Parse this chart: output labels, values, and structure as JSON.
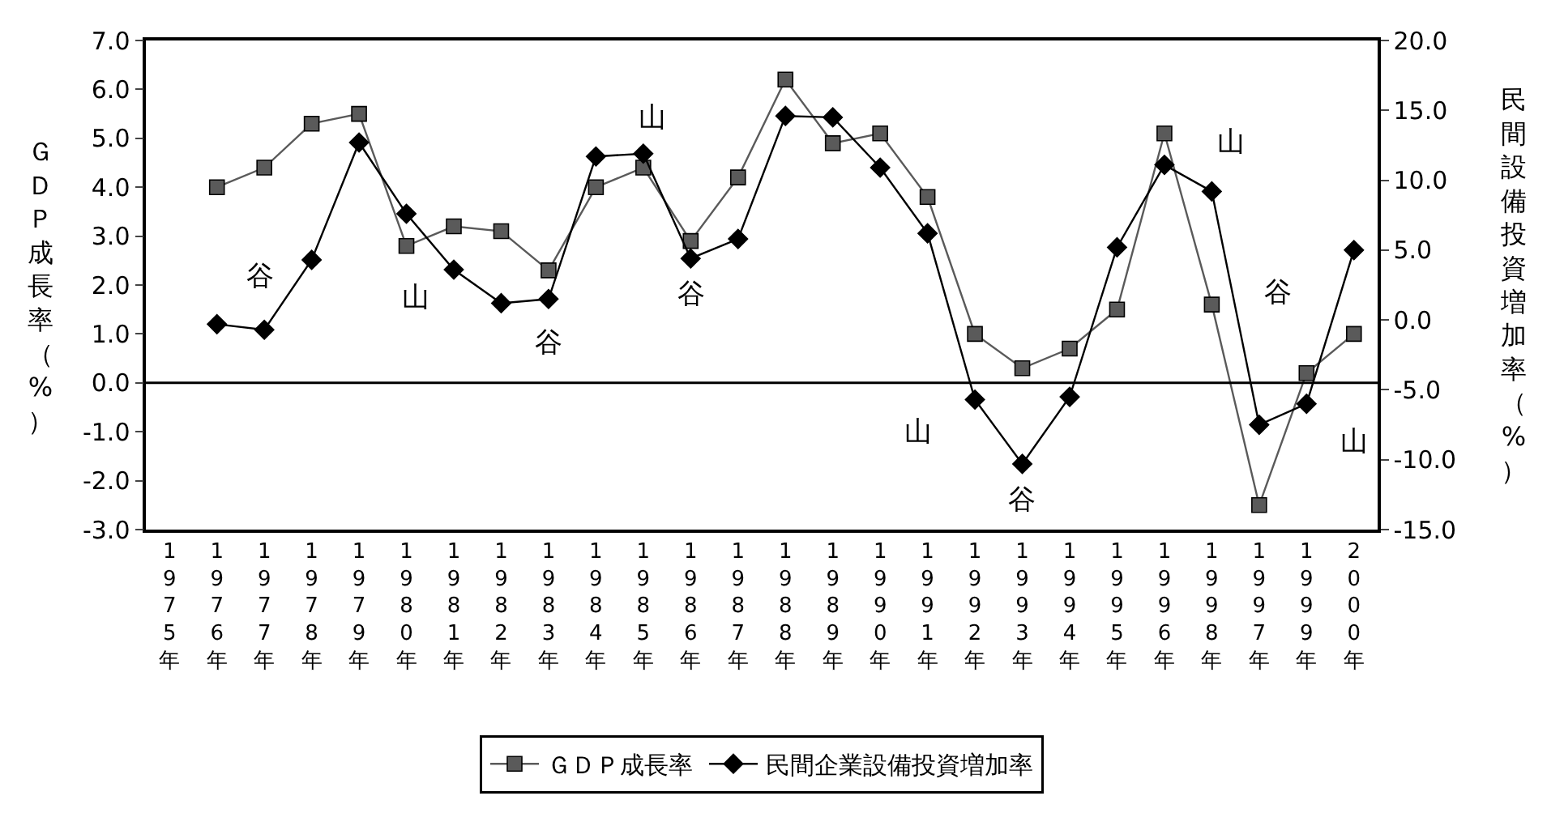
{
  "chart_data": {
    "type": "line",
    "ylabel": "ＧＤＰ成長率（%）",
    "y2label": "民間設備投資増加率（%）",
    "categories": [
      "1975年",
      "1976年",
      "1977年",
      "1978年",
      "1979年",
      "1980年",
      "1981年",
      "1982年",
      "1983年",
      "1984年",
      "1985年",
      "1986年",
      "1987年",
      "1988年",
      "1989年",
      "1990年",
      "1991年",
      "1992年",
      "1993年",
      "1994年",
      "1995年",
      "1996年",
      "1998年",
      "1997年",
      "1999年",
      "2000年"
    ],
    "series": [
      {
        "name": "ＧＤＰ成長率",
        "color": "#5a5a5a",
        "marker": "square",
        "values": [
          null,
          4.0,
          4.4,
          5.3,
          5.5,
          2.8,
          3.2,
          3.1,
          2.3,
          4.0,
          4.4,
          2.9,
          4.2,
          6.2,
          4.9,
          5.1,
          3.8,
          1.0,
          0.3,
          0.7,
          1.5,
          5.1,
          1.6,
          -2.5,
          0.2,
          1.0
        ]
      },
      {
        "name": "民間企業設備投資増加率",
        "color": "#000000",
        "marker": "diamond",
        "axis": "y2",
        "values": [
          null,
          -0.3,
          -0.7,
          4.3,
          12.7,
          7.6,
          3.6,
          1.2,
          1.5,
          11.7,
          11.9,
          4.4,
          5.8,
          14.6,
          14.5,
          10.9,
          6.2,
          -5.7,
          -10.3,
          -5.5,
          5.2,
          11.1,
          9.2,
          -7.5,
          -6.0,
          5.0
        ]
      }
    ],
    "ylim": [
      -3,
      7
    ],
    "yticks": [
      {
        "value": -3,
        "label": "-3.0"
      },
      {
        "value": -2,
        "label": "-2.0"
      },
      {
        "value": -1,
        "label": "-1.0"
      },
      {
        "value": 0,
        "label": "0.0"
      },
      {
        "value": 1,
        "label": "1.0"
      },
      {
        "value": 2,
        "label": "2.0"
      },
      {
        "value": 3,
        "label": "3.0"
      },
      {
        "value": 4,
        "label": "4.0"
      },
      {
        "value": 5,
        "label": "5.0"
      },
      {
        "value": 6,
        "label": "6.0"
      },
      {
        "value": 7,
        "label": "7.0"
      }
    ],
    "y2lim": [
      -15,
      20
    ],
    "y2ticks": [
      {
        "value": -15,
        "label": "-15.0"
      },
      {
        "value": -10,
        "label": "-10.0"
      },
      {
        "value": -5,
        "label": "-5.0"
      },
      {
        "value": 0,
        "label": "0.0"
      },
      {
        "value": 5,
        "label": "5.0"
      },
      {
        "value": 10,
        "label": "10.0"
      },
      {
        "value": 15,
        "label": "15.0"
      },
      {
        "value": 20,
        "label": "20.0"
      }
    ],
    "ref_lines": [
      {
        "axis": "y",
        "value": 0,
        "color": "#000000"
      }
    ],
    "annotations": [
      "谷",
      "山",
      "谷",
      "山",
      "谷",
      "山",
      "谷",
      "山",
      "谷",
      "山"
    ],
    "legend": "bottom",
    "line_style": "solid"
  }
}
